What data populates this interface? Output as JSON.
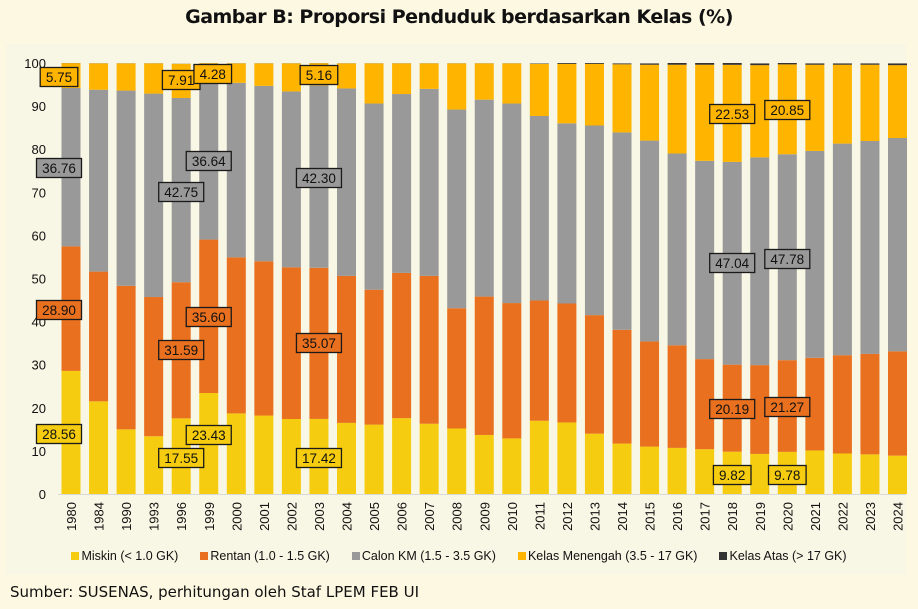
{
  "title": "Gambar B: Proporsi Penduduk berdasarkan Kelas (%)",
  "source": "Sumber: SUSENAS, perhitungan oleh Staf LPEM FEB UI",
  "chart_data": {
    "type": "bar",
    "stacked": true,
    "title": "Gambar B: Proporsi Penduduk berdasarkan Kelas (%)",
    "xlabel": "",
    "ylabel": "",
    "ylim": [
      0,
      100
    ],
    "yticks": [
      0,
      10,
      20,
      30,
      40,
      50,
      60,
      70,
      80,
      90,
      100
    ],
    "grid": false,
    "legend_position": "bottom",
    "categories": [
      "1980",
      "1984",
      "1990",
      "1993",
      "1996",
      "1999",
      "2000",
      "2001",
      "2002",
      "2003",
      "2004",
      "2005",
      "2006",
      "2007",
      "2008",
      "2009",
      "2010",
      "2011",
      "2012",
      "2013",
      "2014",
      "2015",
      "2016",
      "2017",
      "2018",
      "2019",
      "2020",
      "2021",
      "2022",
      "2023",
      "2024"
    ],
    "series": [
      {
        "name": "Miskin (< 1.0 GK)",
        "color": "#f5cc0f",
        "values": [
          28.56,
          21.5,
          15.0,
          13.4,
          17.55,
          23.43,
          18.7,
          18.2,
          17.4,
          17.42,
          16.5,
          16.1,
          17.6,
          16.3,
          15.2,
          13.7,
          12.9,
          17.0,
          16.6,
          14.0,
          11.7,
          11.0,
          10.7,
          10.4,
          9.82,
          9.3,
          9.78,
          10.1,
          9.4,
          9.2,
          8.9
        ]
      },
      {
        "name": "Rentan (1.0 - 1.5 GK)",
        "color": "#e8701e",
        "values": [
          28.9,
          30.1,
          33.3,
          32.3,
          31.59,
          35.6,
          36.2,
          35.8,
          35.2,
          35.07,
          34.1,
          31.3,
          33.7,
          34.3,
          27.9,
          32.1,
          31.4,
          27.9,
          27.6,
          27.5,
          26.4,
          24.4,
          23.8,
          20.9,
          20.19,
          20.6,
          21.27,
          21.5,
          22.8,
          23.3,
          24.2
        ]
      },
      {
        "name": "Calon KM (1.5 - 3.5 GK)",
        "color": "#999999",
        "values": [
          36.76,
          42.2,
          45.3,
          47.2,
          42.75,
          36.64,
          40.5,
          40.7,
          40.8,
          42.3,
          43.5,
          43.2,
          41.5,
          43.4,
          46.1,
          45.7,
          46.3,
          42.8,
          41.8,
          44.0,
          45.8,
          46.6,
          44.5,
          46.0,
          47.04,
          48.2,
          47.78,
          48.0,
          49.1,
          49.4,
          49.5
        ]
      },
      {
        "name": "Kelas Menengah (3.5 - 17 GK)",
        "color": "#ffb400",
        "values": [
          5.75,
          6.1,
          6.3,
          7.0,
          7.91,
          4.28,
          4.5,
          5.2,
          6.5,
          5.16,
          5.8,
          9.3,
          7.1,
          5.9,
          10.7,
          8.4,
          9.3,
          12.1,
          13.8,
          14.3,
          15.8,
          17.6,
          20.6,
          22.3,
          22.53,
          21.4,
          20.85,
          20.0,
          18.3,
          17.7,
          16.9
        ]
      },
      {
        "name": "Kelas Atas (> 17 GK)",
        "color": "#333333",
        "values": [
          0.03,
          0.03,
          0.03,
          0.03,
          0.03,
          0.03,
          0.03,
          0.03,
          0.03,
          0.03,
          0.03,
          0.03,
          0.03,
          0.03,
          0.03,
          0.03,
          0.03,
          0.1,
          0.2,
          0.2,
          0.2,
          0.3,
          0.4,
          0.4,
          0.42,
          0.4,
          0.32,
          0.3,
          0.3,
          0.3,
          0.4
        ]
      }
    ],
    "annotations": [
      {
        "category": "1980",
        "series": "Kelas Menengah (3.5 - 17 GK)",
        "label": "5.75"
      },
      {
        "category": "1980",
        "series": "Calon KM (1.5 - 3.5 GK)",
        "label": "36.76"
      },
      {
        "category": "1980",
        "series": "Rentan (1.0 - 1.5 GK)",
        "label": "28.90"
      },
      {
        "category": "1980",
        "series": "Miskin (< 1.0 GK)",
        "label": "28.56"
      },
      {
        "category": "1996",
        "series": "Kelas Menengah (3.5 - 17 GK)",
        "label": "7.91"
      },
      {
        "category": "1996",
        "series": "Calon KM (1.5 - 3.5 GK)",
        "label": "42.75"
      },
      {
        "category": "1996",
        "series": "Rentan (1.0 - 1.5 GK)",
        "label": "31.59"
      },
      {
        "category": "1996",
        "series": "Miskin (< 1.0 GK)",
        "label": "17.55"
      },
      {
        "category": "1999",
        "series": "Kelas Menengah (3.5 - 17 GK)",
        "label": "4.28"
      },
      {
        "category": "1999",
        "series": "Calon KM (1.5 - 3.5 GK)",
        "label": "36.64"
      },
      {
        "category": "1999",
        "series": "Rentan (1.0 - 1.5 GK)",
        "label": "35.60"
      },
      {
        "category": "1999",
        "series": "Miskin (< 1.0 GK)",
        "label": "23.43"
      },
      {
        "category": "2003",
        "series": "Kelas Menengah (3.5 - 17 GK)",
        "label": "5.16"
      },
      {
        "category": "2003",
        "series": "Calon KM (1.5 - 3.5 GK)",
        "label": "42.30"
      },
      {
        "category": "2003",
        "series": "Rentan (1.0 - 1.5 GK)",
        "label": "35.07"
      },
      {
        "category": "2003",
        "series": "Miskin (< 1.0 GK)",
        "label": "17.42"
      },
      {
        "category": "2018",
        "series": "Kelas Menengah (3.5 - 17 GK)",
        "label": "22.53"
      },
      {
        "category": "2018",
        "series": "Calon KM (1.5 - 3.5 GK)",
        "label": "47.04"
      },
      {
        "category": "2018",
        "series": "Rentan (1.0 - 1.5 GK)",
        "label": "20.19"
      },
      {
        "category": "2018",
        "series": "Miskin (< 1.0 GK)",
        "label": "9.82"
      },
      {
        "category": "2020",
        "series": "Kelas Menengah (3.5 - 17 GK)",
        "label": "20.85"
      },
      {
        "category": "2020",
        "series": "Calon KM (1.5 - 3.5 GK)",
        "label": "47.78"
      },
      {
        "category": "2020",
        "series": "Rentan (1.0 - 1.5 GK)",
        "label": "21.27"
      },
      {
        "category": "2020",
        "series": "Miskin (< 1.0 GK)",
        "label": "9.78"
      }
    ]
  }
}
